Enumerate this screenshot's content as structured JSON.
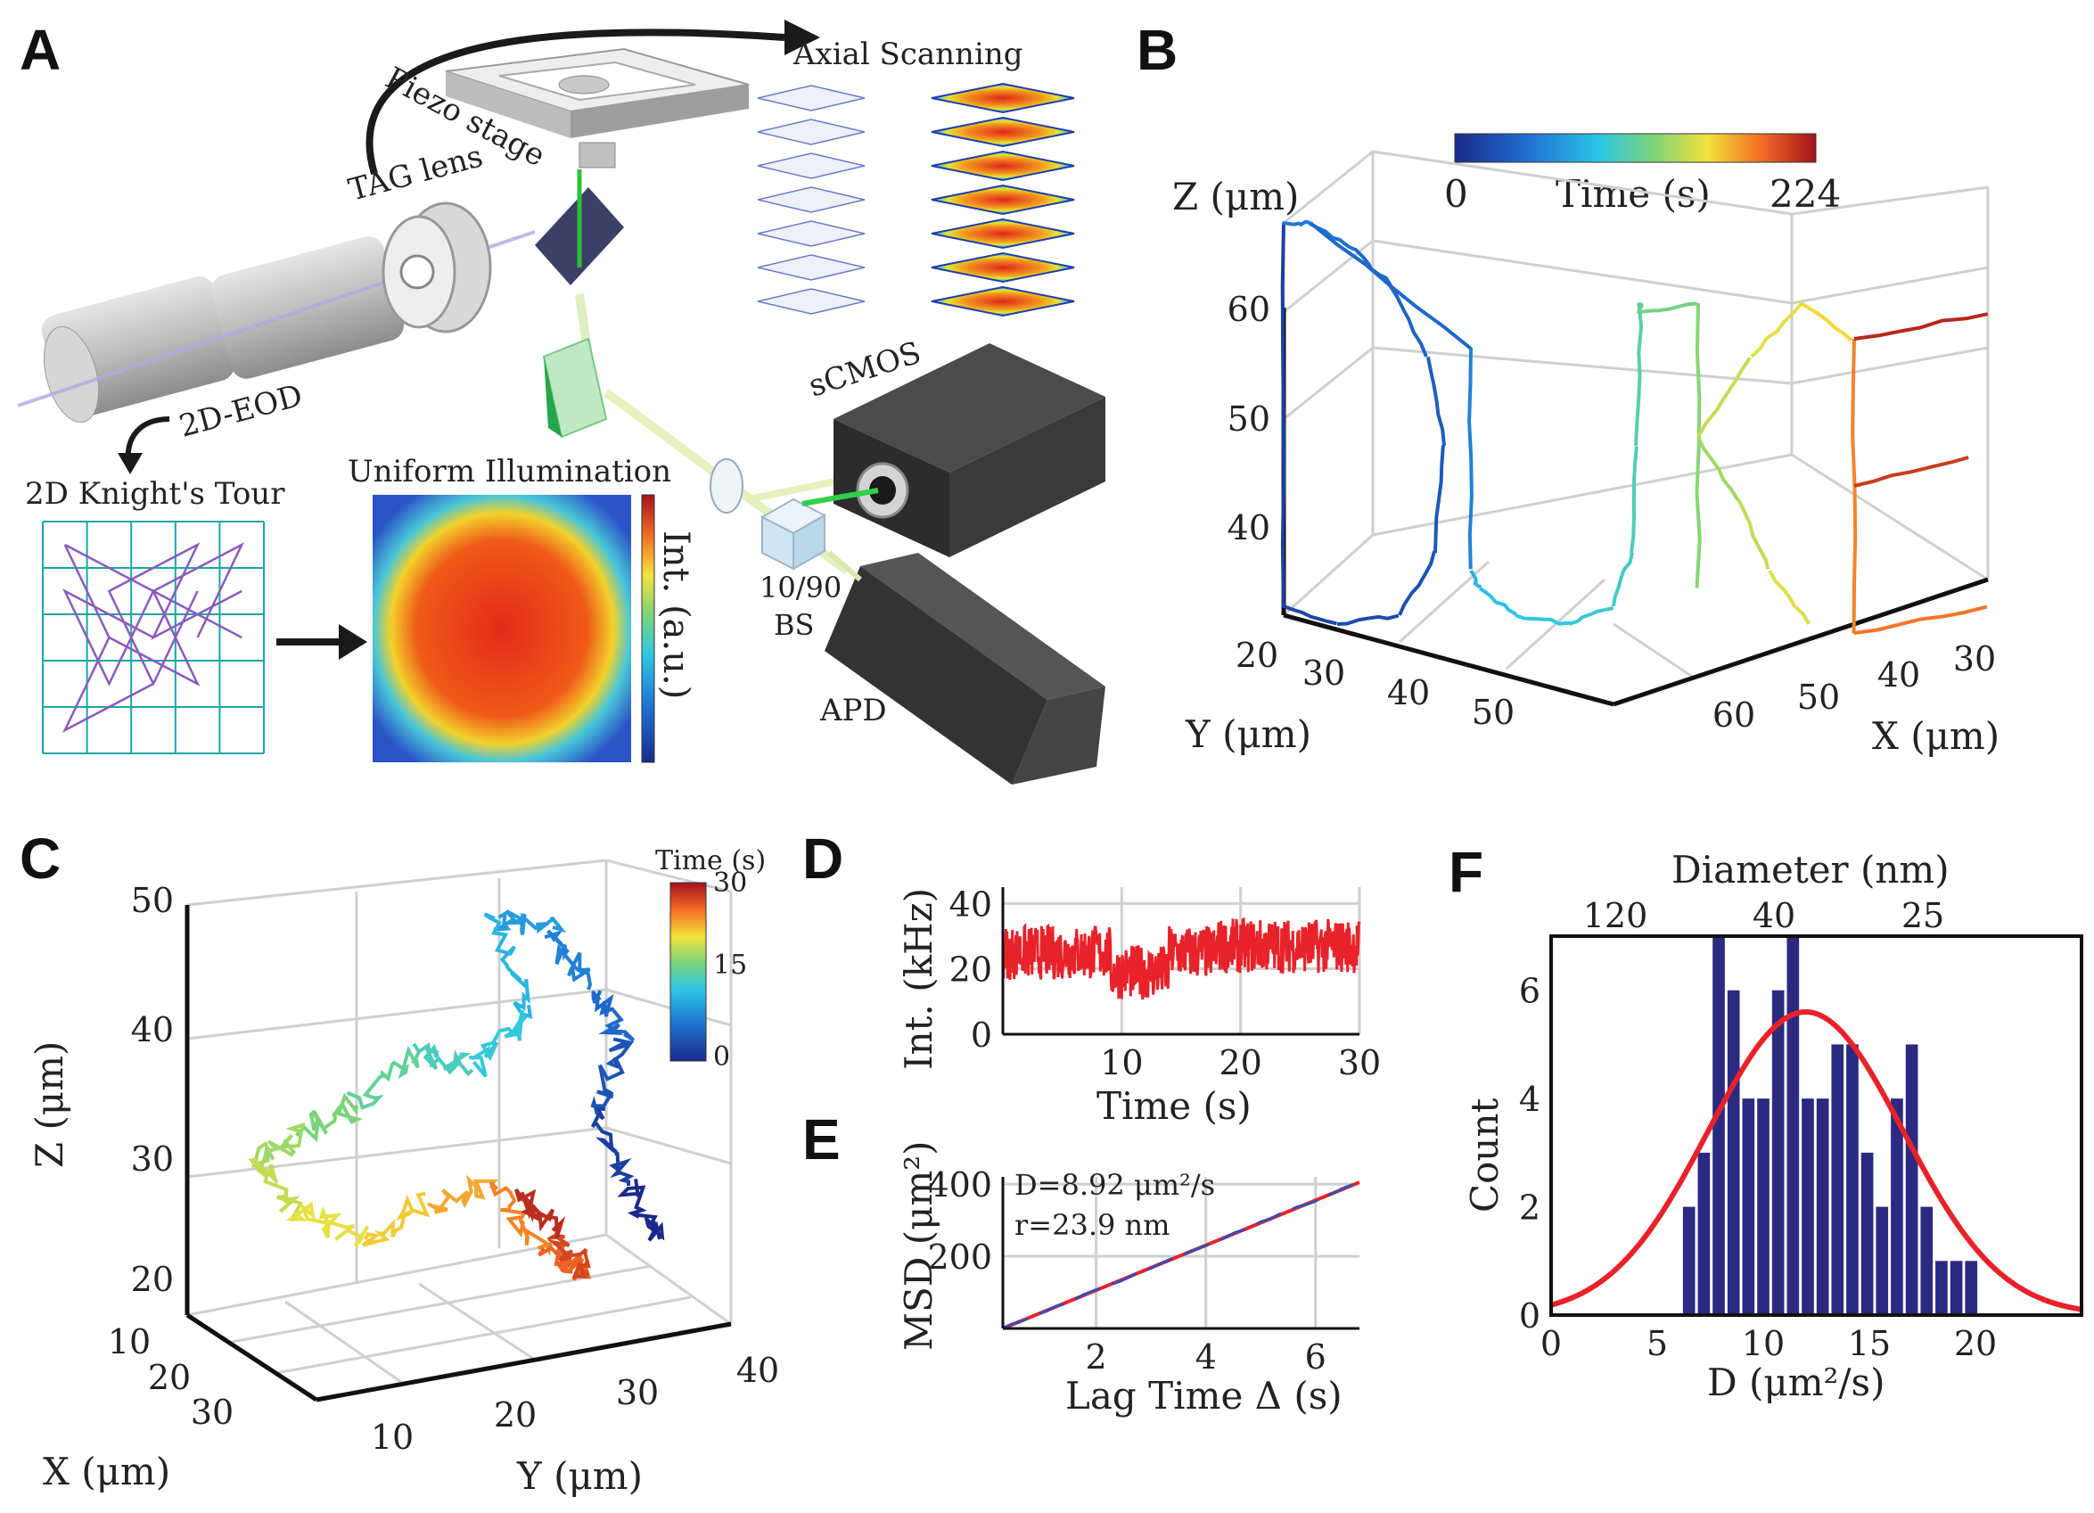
{
  "panel_letters": [
    "A",
    "B",
    "C",
    "D",
    "E",
    "F"
  ],
  "panel_a": {
    "axial_scanning": "Axial Scanning",
    "piezo_stage": "Piezo stage",
    "tag_lens": "TAG lens",
    "eod": "2D-EOD",
    "knights_tour": "2D Knight's Tour",
    "uniform_illumination": "Uniform Illumination",
    "int_au": "Int. (a.u.)",
    "bs_top": "10/90",
    "bs_bottom": "BS",
    "scmos": "sCMOS",
    "apd": "APD"
  },
  "colors": {
    "red": "#e8222a",
    "navy": "#2a2a80",
    "grid": "#cfcfcf"
  },
  "chart_data": [
    {
      "panel": "B",
      "type": "line",
      "zlabel": "Z (μm)",
      "ylabel": "Y (μm)",
      "xlabel": "X (μm)",
      "z_ticks": [
        "40",
        "50",
        "60"
      ],
      "y_ticks": [
        "20",
        "30",
        "40",
        "50"
      ],
      "x_ticks": [
        "30",
        "40",
        "50",
        "60"
      ],
      "colorbar": {
        "label": "Time (s)",
        "min": "0",
        "max": "224"
      },
      "trajectory_letters": "DUKE"
    },
    {
      "panel": "C",
      "type": "line",
      "zlabel": "Z (μm)",
      "xlabel": "X (μm)",
      "ylabel": "Y (μm)",
      "z_ticks": [
        "20",
        "30",
        "40",
        "50"
      ],
      "x_ticks": [
        "10",
        "20",
        "30"
      ],
      "y_ticks": [
        "10",
        "20",
        "30",
        "40"
      ],
      "colorbar": {
        "label": "Time (s)",
        "ticks": [
          "0",
          "15",
          "30"
        ]
      }
    },
    {
      "panel": "D",
      "type": "line",
      "xlabel": "Time (s)",
      "ylabel": "Int. (kHz)",
      "xlim": [
        0,
        30
      ],
      "ylim": [
        0,
        45
      ],
      "x_ticks": [
        "10",
        "20",
        "30"
      ],
      "y_ticks": [
        "0",
        "20",
        "40"
      ],
      "series": [
        {
          "mean": 25,
          "spread": 6
        }
      ]
    },
    {
      "panel": "E",
      "type": "line",
      "xlabel": "Lag Time Δ (s)",
      "ylabel": "MSD (μm²)",
      "x_ticks": [
        "2",
        "4",
        "6"
      ],
      "y_ticks": [
        "200",
        "400"
      ],
      "xlim": [
        0.3,
        6.8
      ],
      "ylim": [
        0,
        420
      ],
      "annotation_d": "D=8.92 μm²/s",
      "annotation_r": "r=23.9 nm",
      "fit": {
        "x": [
          0.3,
          6.8
        ],
        "y": [
          0,
          405
        ]
      }
    },
    {
      "panel": "F",
      "type": "bar",
      "xlabel": "D (μm²/s)",
      "ylabel": "Count",
      "top_xlabel": "Diameter (nm)",
      "top_ticks": [
        "120",
        "40",
        "25"
      ],
      "x_ticks": [
        "0",
        "5",
        "10",
        "15",
        "20"
      ],
      "y_ticks": [
        "0",
        "2",
        "4",
        "6"
      ],
      "xlim": [
        0,
        25
      ],
      "ylim": [
        0,
        7
      ],
      "bin_width": 0.7,
      "bins": [
        6.5,
        7.2,
        7.9,
        8.6,
        9.3,
        10.0,
        10.7,
        11.4,
        12.1,
        12.8,
        13.5,
        14.2,
        14.9,
        15.6,
        16.3,
        17.0,
        17.7,
        18.4,
        19.1,
        19.8
      ],
      "counts": [
        2,
        3,
        7,
        6,
        4,
        4,
        6,
        7,
        4,
        4,
        5,
        5,
        3,
        2,
        4,
        5,
        2,
        1,
        1,
        1
      ],
      "gauss_fit": {
        "mu": 12,
        "sigma": 4.6,
        "amp": 5.6
      }
    }
  ]
}
